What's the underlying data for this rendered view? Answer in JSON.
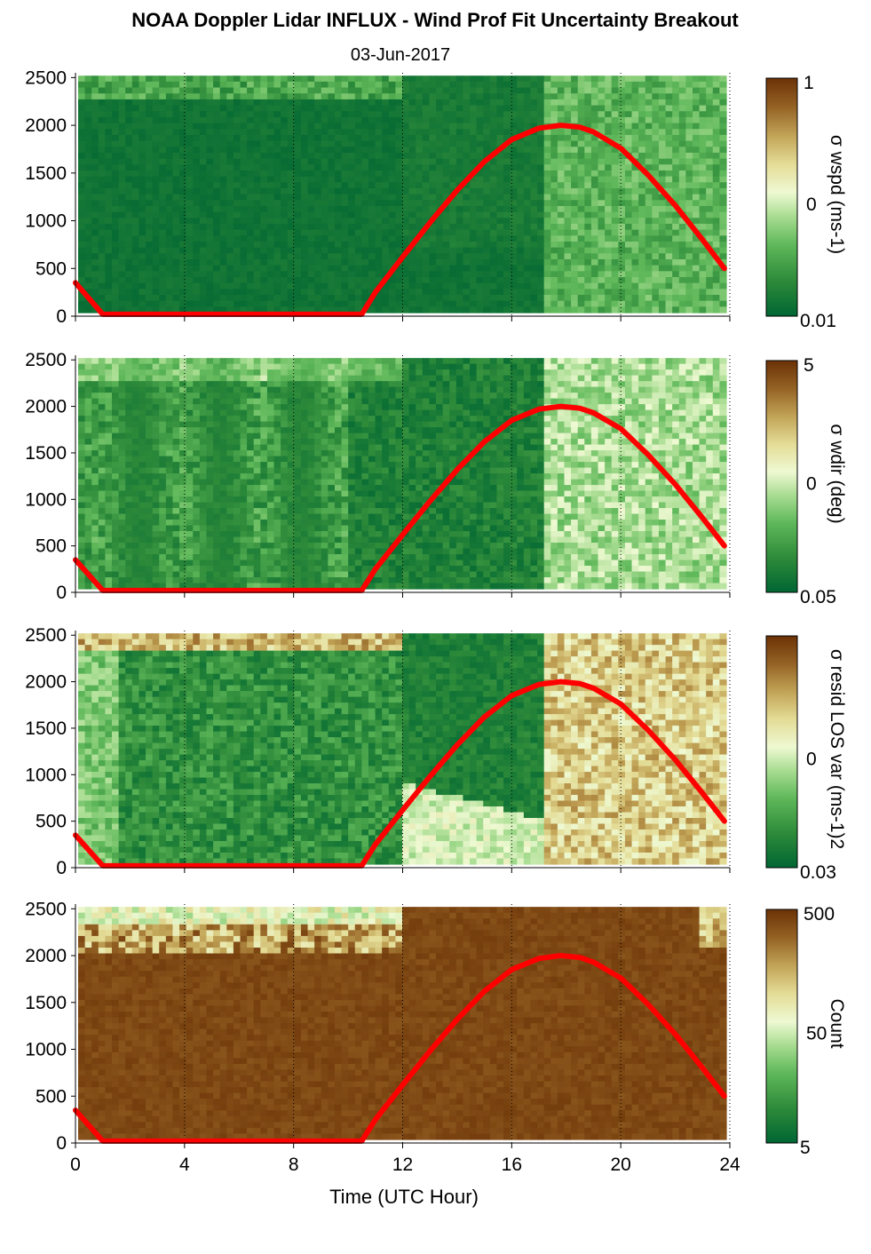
{
  "figure": {
    "title": "NOAA Doppler Lidar INFLUX - Wind Prof Fit Uncertainty Breakout",
    "subtitle": "03-Jun-2017",
    "xlabel": "Time (UTC Hour)"
  },
  "colors": {
    "curve": "#ff0000",
    "scale": [
      "#006633",
      "#2e8b3a",
      "#5fb85a",
      "#a9dd92",
      "#eef9d2",
      "#e4dc96",
      "#c1a356",
      "#946224",
      "#6b3206"
    ]
  },
  "chart_data": [
    {
      "type": "heatmap",
      "panel": "wspd",
      "ylabel": "σ wspd (ms-1)",
      "colorbar_ticks": [
        "1",
        "0",
        "0.01"
      ],
      "xlim": [
        0,
        24
      ],
      "ylim": [
        0,
        2550
      ],
      "x_ticks": [
        "0",
        "4",
        "8",
        "12",
        "16",
        "20",
        "24"
      ],
      "y_ticks": [
        "0",
        "500",
        "1000",
        "1500",
        "2000",
        "2500"
      ],
      "color_level_description": "low (dark green) mostly; higher after 17 UTC"
    },
    {
      "type": "heatmap",
      "panel": "wdir",
      "ylabel": "σ wdir (deg)",
      "colorbar_ticks": [
        "5",
        "0",
        "0.05"
      ],
      "xlim": [
        0,
        24
      ],
      "ylim": [
        0,
        2550
      ],
      "x_ticks": [
        "0",
        "4",
        "8",
        "12",
        "16",
        "20",
        "24"
      ],
      "y_ticks": [
        "0",
        "500",
        "1000",
        "1500",
        "2000",
        "2500"
      ]
    },
    {
      "type": "heatmap",
      "panel": "resid",
      "ylabel": "σ resid LOS var (ms-1)2",
      "colorbar_ticks": [
        "",
        "0",
        "0.03"
      ],
      "xlim": [
        0,
        24
      ],
      "ylim": [
        0,
        2550
      ],
      "x_ticks": [
        "0",
        "4",
        "8",
        "12",
        "16",
        "20",
        "24"
      ],
      "y_ticks": [
        "0",
        "500",
        "1000",
        "1500",
        "2000",
        "2500"
      ]
    },
    {
      "type": "heatmap",
      "panel": "count",
      "ylabel": "Count",
      "colorbar_ticks": [
        "500",
        "50",
        "5"
      ],
      "xlim": [
        0,
        24
      ],
      "ylim": [
        0,
        2550
      ],
      "x_ticks": [
        "0",
        "4",
        "8",
        "12",
        "16",
        "20",
        "24"
      ],
      "y_ticks": [
        "0",
        "500",
        "1000",
        "1500",
        "2000",
        "2500"
      ]
    }
  ],
  "overlay_curve": {
    "name": "",
    "x": [
      0,
      1,
      2,
      4,
      6,
      8,
      10,
      10.5,
      11,
      12,
      13,
      14,
      15,
      16,
      17,
      17.8,
      18.5,
      19,
      20,
      21,
      22,
      23,
      23.8
    ],
    "y": [
      350,
      20,
      20,
      20,
      20,
      20,
      20,
      20,
      250,
      620,
      980,
      1320,
      1620,
      1850,
      1970,
      2000,
      1980,
      1930,
      1760,
      1480,
      1160,
      800,
      500
    ]
  }
}
